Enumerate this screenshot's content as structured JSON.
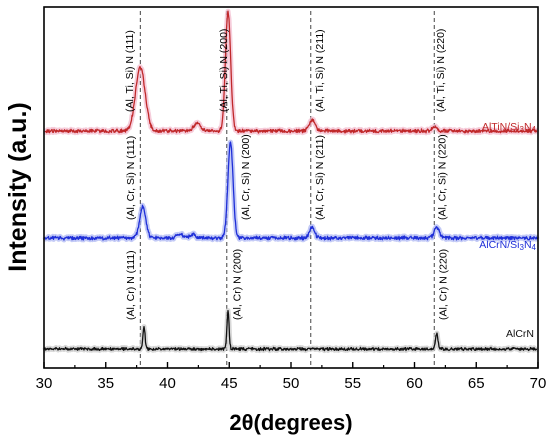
{
  "chart_data": {
    "type": "line",
    "title": "",
    "xlabel": "2θ(degrees)",
    "ylabel": "Intensity (a.u.)",
    "xlim": [
      30,
      70
    ],
    "x_ticks": [
      "30",
      "35",
      "40",
      "45",
      "50",
      "55",
      "60",
      "65",
      "70"
    ],
    "y_ticks_shown": false,
    "grid": false,
    "reference_lines_x": [
      37.8,
      44.8,
      51.6,
      61.6
    ],
    "series": [
      {
        "name": "AlTiN/Si3N4",
        "label_main": "AlTiN/Si",
        "label_sub1": "3",
        "label_mid": "N",
        "label_sub2": "4",
        "color": "#c0282a",
        "band_color": "#f2b8cc",
        "baseline": 0.62,
        "peaks": [
          {
            "x": 37.8,
            "height": 0.53,
            "width": 0.55
          },
          {
            "x": 42.4,
            "height": 0.06,
            "width": 0.4
          },
          {
            "x": 44.9,
            "height": 0.99,
            "width": 0.3
          },
          {
            "x": 51.7,
            "height": 0.09,
            "width": 0.35
          },
          {
            "x": 61.6,
            "height": 0.04,
            "width": 0.25
          }
        ],
        "peak_labels": [
          {
            "x": 37.2,
            "text": "(Al, Ti, Si) N (111)"
          },
          {
            "x": 44.8,
            "text": "(Al, Ti, Si) N (200)"
          },
          {
            "x": 52.6,
            "text": "(Al, Ti, Si) N (211)"
          },
          {
            "x": 62.4,
            "text": "(Al, Ti, Si) N (220)"
          }
        ]
      },
      {
        "name": "AlCrN/Si3N4",
        "label_main": "AlCrN/Si",
        "label_sub1": "3",
        "label_mid": "N",
        "label_sub2": "4",
        "color": "#1f2fd8",
        "band_color": "#aab4f2",
        "baseline": 0.36,
        "peaks": [
          {
            "x": 38.0,
            "height": 0.33,
            "width": 0.35
          },
          {
            "x": 41.0,
            "height": 0.05,
            "width": 0.3
          },
          {
            "x": 42.0,
            "height": 0.04,
            "width": 0.3
          },
          {
            "x": 45.1,
            "height": 1.0,
            "width": 0.3
          },
          {
            "x": 51.7,
            "height": 0.11,
            "width": 0.3
          },
          {
            "x": 61.8,
            "height": 0.11,
            "width": 0.3
          }
        ],
        "peak_labels": [
          {
            "x": 37.3,
            "text": "(Al, Cr, Si) N (111)"
          },
          {
            "x": 46.6,
            "text": "(Al, Cr, Si) N (200)"
          },
          {
            "x": 52.6,
            "text": "(Al, Cr, Si) N (211)"
          },
          {
            "x": 62.5,
            "text": "(Al, Cr, Si) N (220)"
          }
        ]
      },
      {
        "name": "AlCrN",
        "label_main": "AlCrN",
        "color": "#111111",
        "band_color": "#c8c8c8",
        "baseline": 0.0,
        "peaks": [
          {
            "x": 38.1,
            "height": 0.26,
            "width": 0.12
          },
          {
            "x": 44.9,
            "height": 0.44,
            "width": 0.12
          },
          {
            "x": 61.8,
            "height": 0.17,
            "width": 0.15
          }
        ],
        "peak_labels": [
          {
            "x": 37.3,
            "text": "(Al, Cr) N (111)"
          },
          {
            "x": 45.9,
            "text": "(Al, Cr) N (200)"
          },
          {
            "x": 62.6,
            "text": "(Al, Cr) N (220)"
          }
        ]
      }
    ]
  }
}
